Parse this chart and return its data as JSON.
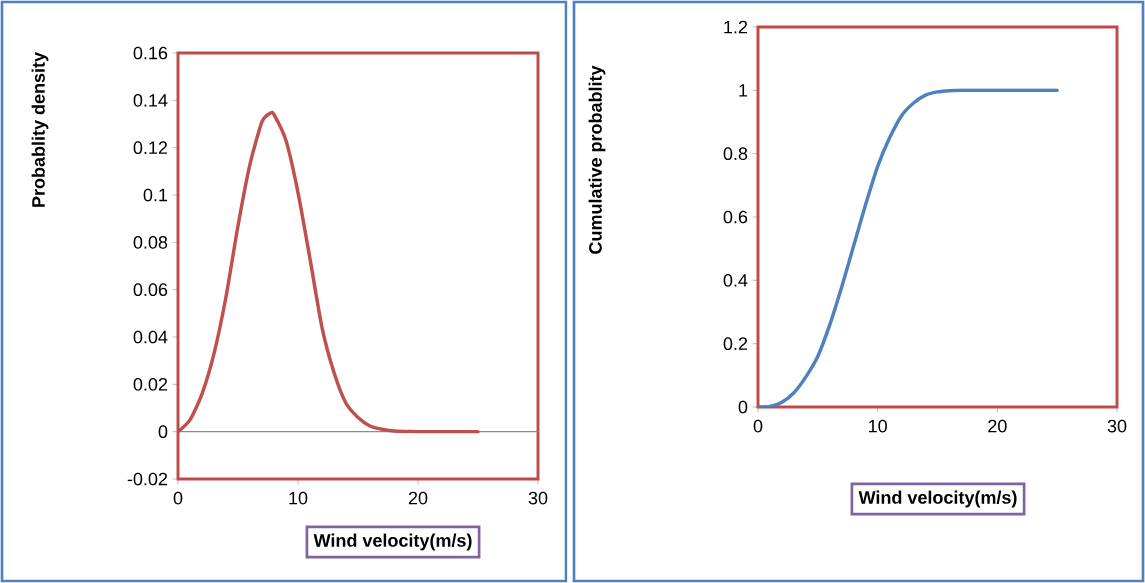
{
  "chart_data": [
    {
      "type": "line",
      "ylabel": "Probablity density",
      "xlabel": "Wind velocity(m/s)",
      "x": [
        0,
        1,
        2,
        3,
        4,
        5,
        6,
        7,
        7.7,
        8,
        9,
        10,
        11,
        12,
        13,
        14,
        15,
        16,
        17,
        18,
        19,
        20,
        21,
        22,
        23,
        24,
        25
      ],
      "series": [
        {
          "color": "#c0504d",
          "values": [
            0,
            0.005,
            0.016,
            0.033,
            0.057,
            0.087,
            0.113,
            0.131,
            0.1346,
            0.134,
            0.123,
            0.101,
            0.073,
            0.044,
            0.025,
            0.012,
            0.006,
            0.0024,
            0.001,
            0.0003,
            0.0001,
            0,
            0,
            0,
            0,
            0,
            0
          ]
        }
      ],
      "xlim": [
        0,
        30
      ],
      "xticks": [
        0,
        10,
        20,
        30
      ],
      "ylim": [
        -0.02,
        0.16
      ],
      "yticks": [
        -0.02,
        0,
        0.02,
        0.04,
        0.06,
        0.08,
        0.1,
        0.12,
        0.14,
        0.16
      ],
      "ref_lines": [
        {
          "axis": "y",
          "value": 0,
          "color": "#8c8c8c"
        }
      ],
      "marker": "none",
      "line_style": "solid"
    },
    {
      "type": "line",
      "ylabel": "Cumulative probablity",
      "xlabel": "Wind velocity(m/s)",
      "x": [
        0,
        1,
        2,
        3,
        4,
        5,
        6,
        7,
        8,
        9,
        10,
        11,
        12,
        13,
        14,
        15,
        16,
        17,
        18,
        20,
        22,
        25
      ],
      "series": [
        {
          "color": "#4f81bd",
          "values": [
            0,
            0.002,
            0.015,
            0.045,
            0.095,
            0.16,
            0.26,
            0.38,
            0.51,
            0.64,
            0.76,
            0.85,
            0.92,
            0.96,
            0.985,
            0.995,
            0.999,
            1,
            1,
            1,
            1,
            1
          ]
        }
      ],
      "xlim": [
        0,
        30
      ],
      "xticks": [
        0,
        10,
        20,
        30
      ],
      "ylim": [
        0,
        1.2
      ],
      "yticks": [
        0,
        0.2,
        0.4,
        0.6,
        0.8,
        1,
        1.2
      ],
      "marker": "none",
      "line_style": "solid"
    }
  ]
}
